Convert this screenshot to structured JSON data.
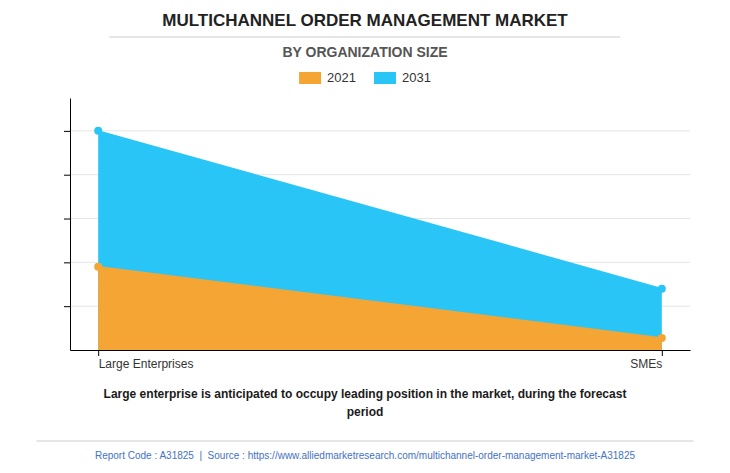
{
  "chart_data": {
    "type": "area",
    "title": "MULTICHANNEL ORDER MANAGEMENT MARKET",
    "subtitle": "BY ORGANIZATION SIZE",
    "categories": [
      "Large Enterprises",
      "SMEs"
    ],
    "series": [
      {
        "name": "2021",
        "color": "#F5A533",
        "values": [
          3.8,
          0.55
        ],
        "marker": "circle"
      },
      {
        "name": "2031",
        "color": "#29C5F6",
        "values": [
          10.0,
          2.8
        ],
        "marker": "circle"
      }
    ],
    "ylim": [
      0,
      11.5
    ],
    "yticks": [
      2,
      4,
      6,
      8,
      10
    ],
    "grid": true,
    "legend": "top",
    "tick_labels": "x",
    "annotations": [
      "Large enterprise is anticipated to occupy leading position in the market, during the forecast\nperiod",
      "Report Code : A31825  |  Source : https://www.alliedmarketresearch.com/multichannel-order-management-market-A31825"
    ]
  }
}
